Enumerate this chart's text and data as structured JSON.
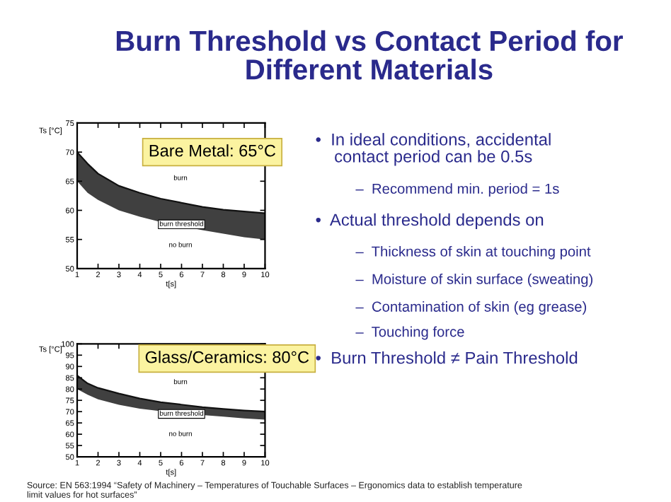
{
  "chart_data": [
    {
      "type": "line",
      "ylabel": "Ts [°C]",
      "xlabel": "t[s]",
      "x": [
        1,
        1.5,
        2,
        3,
        4,
        5,
        7,
        8,
        9,
        10
      ],
      "series": [
        {
          "color": "#111111",
          "values": [
            70,
            68,
            66.3,
            64.2,
            63,
            62,
            60.6,
            60.1,
            59.8,
            59.5
          ],
          "lower": [
            65,
            63,
            61.8,
            60,
            58.9,
            58,
            56.6,
            56,
            55.4,
            55
          ],
          "upper": [
            70,
            68,
            66.3,
            64.2,
            63,
            62,
            60.6,
            60.1,
            59.8,
            59.5
          ]
        }
      ],
      "xlim": [
        1,
        10
      ],
      "ylim": [
        50,
        75
      ],
      "xticks": [
        1,
        2,
        3,
        4,
        5,
        6,
        7,
        8,
        9,
        10
      ],
      "yticks": [
        50,
        55,
        60,
        65,
        70,
        75
      ],
      "annotations": [
        "burn",
        {
          "text": "burn threshold",
          "x": 6,
          "y": 57.6
        },
        "no burn",
        "Bare Metal: 65°C"
      ]
    },
    {
      "type": "line",
      "ylabel": "Ts [°C]",
      "xlabel": "t[s]",
      "x": [
        1,
        1.5,
        2,
        3,
        4,
        5,
        7,
        8,
        9,
        10
      ],
      "series": [
        {
          "color": "#111111",
          "values": [
            86,
            82.5,
            80.5,
            78,
            75.8,
            74.2,
            72,
            71.2,
            70.5,
            70
          ],
          "lower": [
            80,
            77.5,
            75.5,
            73,
            71.3,
            70.2,
            68.5,
            67.8,
            67,
            66.5
          ],
          "upper": [
            86,
            82.5,
            80.5,
            78,
            75.8,
            74.2,
            72,
            71.2,
            70.5,
            70
          ]
        }
      ],
      "xlim": [
        1,
        10
      ],
      "ylim": [
        50,
        100
      ],
      "xticks": [
        1,
        2,
        3,
        4,
        5,
        6,
        7,
        8,
        9,
        10
      ],
      "yticks": [
        50,
        55,
        60,
        65,
        70,
        75,
        80,
        85,
        90,
        95,
        100
      ],
      "annotations": [
        "burn",
        {
          "text": "burn threshold",
          "x": 6,
          "y": 69
        },
        "no burn",
        "Glass/Ceramics: 80°C"
      ]
    },
    {
      "type": "other",
      "title": "Burn Threshold vs Contact Period for\nDifferent Materials",
      "annotations": [
        "•  In ideal conditions, accidental\n    contact period can be 0.5s",
        "–  Recommend min. period = 1s",
        "•  Actual threshold depends on",
        "–  Thickness of skin at touching point",
        "–  Moisture of skin surface (sweating)",
        "–  Contamination of skin (eg grease)",
        "–  Touching force",
        "•  Burn Threshold ≠ Pain Threshold",
        "Source: EN 563:1994 “Safety of Machinery – Temperatures of Touchable Surfaces – Ergonomics data to establish temperature\nlimit values for hot surfaces”"
      ]
    }
  ]
}
